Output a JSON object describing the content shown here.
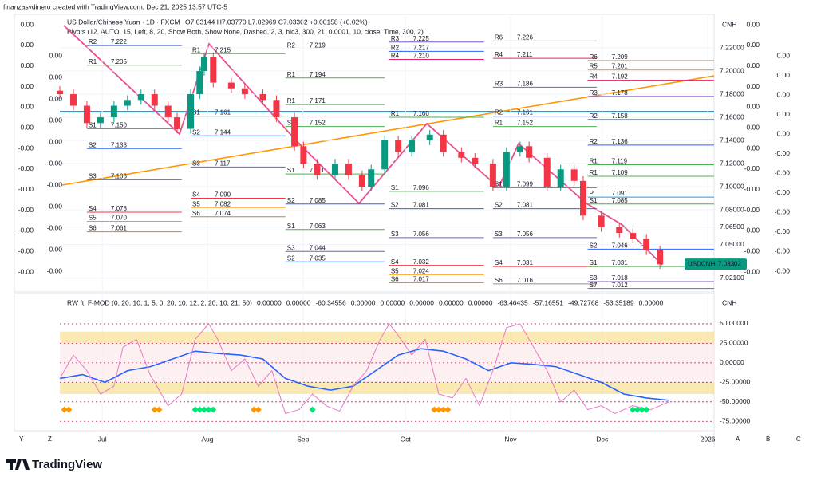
{
  "header": {
    "credit": "finanzasydinero created with TradingView.com, Dec 21, 2025 13:57 UTC-5",
    "symbol": "US Dollar/Chinese Yuan · 1D · FXCM",
    "ohlc": "O7.03144 H7.03770 L7.02969 C7.03302 +0.00158 (+0.02%)",
    "pivots_legend": "Pivots (12, AUTO, 15, Left, 8, 20, Show Both, Show None, Dashed, 2, 3, hlc3, 300, 21, 0.0001, 10, close, Time, 300, 2)",
    "currency": "CNH",
    "osc_currency": "CNH",
    "side_scales": [
      [
        "0.00",
        "0.00",
        "0.00",
        "0.00",
        "0.00",
        "0.00",
        "-0.00",
        "-0.00",
        "-0.00",
        "-0.00",
        "-0.00",
        "-0.00",
        "-0.00"
      ],
      [
        "0.00",
        "0.00",
        "0.00",
        "0.00",
        "0.00",
        "-0.00",
        "-0.00",
        "-0.00",
        "-0.00",
        "-0.00",
        "-0.00"
      ],
      [
        "0.00",
        "0.00",
        "0.00",
        "0.00",
        "0.00",
        "0.00",
        "0.00",
        "-0.00",
        "-0.00",
        "-0.00",
        "-0.00",
        "-0.00",
        "-0.00"
      ],
      [
        "0.00",
        "0.00",
        "0.00",
        "0.00",
        "0.00",
        "-0.00",
        "-0.00",
        "-0.00",
        "-0.00",
        "-0.00",
        "-0.00",
        "-0.00"
      ]
    ]
  },
  "footer": {
    "brand": "TradingView",
    "nav_left": [
      "Y",
      "Z"
    ],
    "nav_right": [
      "A",
      "B",
      "C"
    ]
  },
  "chart_data": [
    {
      "type": "candlestick",
      "symbol_tag": "USDCNH",
      "last_price": 7.03302,
      "xlim": [
        0,
        145
      ],
      "xticks": [
        {
          "value": 9.4,
          "label": "Jul"
        },
        {
          "value": 32.7,
          "label": "Aug"
        },
        {
          "value": 53.9,
          "label": "Sep"
        },
        {
          "value": 76.6,
          "label": "Oct"
        },
        {
          "value": 99.9,
          "label": "Nov"
        },
        {
          "value": 120.2,
          "label": "Dec"
        },
        {
          "value": 143.6,
          "label": "2026"
        }
      ],
      "ylim": [
        7.0097,
        7.2476
      ],
      "yticks": [
        {
          "value": 7.22,
          "label": "7.22000"
        },
        {
          "value": 7.2,
          "label": "7.20000"
        },
        {
          "value": 7.18,
          "label": "7.18000"
        },
        {
          "value": 7.16,
          "label": "7.16000"
        },
        {
          "value": 7.14,
          "label": "7.14000"
        },
        {
          "value": 7.12,
          "label": "7.12000"
        },
        {
          "value": 7.1,
          "label": "7.10000"
        },
        {
          "value": 7.08,
          "label": "7.08000"
        },
        {
          "value": 7.065,
          "label": "7.06500"
        },
        {
          "value": 7.05,
          "label": "7.05000"
        },
        {
          "value": 7.021,
          "label": "7.02100"
        }
      ],
      "up_color": "#089981",
      "down_color": "#f23645",
      "x": [
        0,
        3,
        6,
        9,
        12,
        15,
        18,
        21,
        24,
        26,
        29,
        31,
        32,
        34,
        38,
        41,
        45,
        48,
        52,
        54,
        57,
        61,
        64,
        67,
        69,
        72,
        75,
        78,
        82,
        85,
        89,
        92,
        96,
        99,
        102,
        104,
        108,
        111,
        114,
        116,
        120,
        124,
        127,
        130,
        133
      ],
      "open": [
        7.183,
        7.18,
        7.17,
        7.155,
        7.16,
        7.17,
        7.175,
        7.18,
        7.17,
        7.16,
        7.15,
        7.18,
        7.2,
        7.212,
        7.19,
        7.185,
        7.18,
        7.175,
        7.16,
        7.135,
        7.12,
        7.11,
        7.12,
        7.11,
        7.1,
        7.115,
        7.14,
        7.13,
        7.14,
        7.145,
        7.13,
        7.125,
        7.12,
        7.1,
        7.13,
        7.135,
        7.125,
        7.1,
        7.115,
        7.105,
        7.075,
        7.065,
        7.06,
        7.055,
        7.045
      ],
      "high": [
        7.187,
        7.184,
        7.174,
        7.164,
        7.174,
        7.179,
        7.184,
        7.184,
        7.174,
        7.164,
        7.184,
        7.204,
        7.216,
        7.216,
        7.194,
        7.189,
        7.184,
        7.179,
        7.164,
        7.139,
        7.124,
        7.124,
        7.124,
        7.114,
        7.119,
        7.144,
        7.144,
        7.144,
        7.149,
        7.149,
        7.134,
        7.129,
        7.124,
        7.134,
        7.139,
        7.139,
        7.129,
        7.119,
        7.119,
        7.109,
        7.079,
        7.069,
        7.064,
        7.059,
        7.049
      ],
      "low": [
        7.176,
        7.166,
        7.151,
        7.151,
        7.156,
        7.166,
        7.171,
        7.166,
        7.156,
        7.146,
        7.146,
        7.176,
        7.196,
        7.186,
        7.181,
        7.176,
        7.171,
        7.156,
        7.131,
        7.116,
        7.106,
        7.106,
        7.106,
        7.096,
        7.096,
        7.111,
        7.126,
        7.126,
        7.136,
        7.126,
        7.121,
        7.116,
        7.096,
        7.096,
        7.126,
        7.121,
        7.096,
        7.096,
        7.101,
        7.071,
        7.061,
        7.056,
        7.051,
        7.041,
        7.029
      ],
      "close": [
        7.18,
        7.17,
        7.155,
        7.16,
        7.17,
        7.175,
        7.18,
        7.17,
        7.16,
        7.15,
        7.18,
        7.2,
        7.212,
        7.19,
        7.185,
        7.18,
        7.175,
        7.16,
        7.135,
        7.12,
        7.11,
        7.12,
        7.11,
        7.1,
        7.115,
        7.14,
        7.13,
        7.14,
        7.145,
        7.13,
        7.125,
        7.12,
        7.1,
        7.13,
        7.135,
        7.125,
        7.1,
        7.115,
        7.105,
        7.075,
        7.065,
        7.06,
        7.055,
        7.045,
        7.033
      ],
      "level_colors": {
        "P": "#2196f3",
        "R1": "#4caf50",
        "R2": "#2962ff",
        "R3": "#7e57c2",
        "R4": "#e91e63",
        "R5": "#ff9800",
        "R6": "#a1887f",
        "S1": "#4caf50",
        "S2": "#2962ff",
        "S3": "#7e57c2",
        "S4": "#f23645",
        "S5": "#ff9800",
        "S6": "#a1887f",
        "S7": "#7e57c2"
      },
      "pivots": [
        {
          "x": [
            6,
            27
          ],
          "levels": [
            {
              "name": "R2",
              "value": 7.222
            },
            {
              "name": "R1",
              "value": 7.205
            },
            {
              "name": "S1",
              "value": 7.15,
              "label": "7.150"
            },
            {
              "name": "S2",
              "value": 7.133
            },
            {
              "name": "S3",
              "value": 7.106
            },
            {
              "name": "S4",
              "value": 7.078
            },
            {
              "name": "S5",
              "value": 7.07,
              "label": "7.070"
            },
            {
              "name": "S6",
              "value": 7.061
            }
          ]
        },
        {
          "x": [
            29,
            50
          ],
          "levels": [
            {
              "name": "R1",
              "value": 7.215
            },
            {
              "name": "S1",
              "value": 7.161
            },
            {
              "name": "S2",
              "value": 7.144
            },
            {
              "name": "S3",
              "value": 7.117
            },
            {
              "name": "S4",
              "value": 7.09,
              "label": "7.090"
            },
            {
              "name": "S5",
              "value": 7.082
            },
            {
              "name": "S6",
              "value": 7.074
            }
          ]
        },
        {
          "x": [
            50,
            72
          ],
          "levels": [
            {
              "name": "R2",
              "value": 7.219
            },
            {
              "name": "R1",
              "value": 7.194
            },
            {
              "name": "R1",
              "value": 7.171
            },
            {
              "name": "S1",
              "value": 7.152
            },
            {
              "name": "S1",
              "value": 7.111
            },
            {
              "name": "S2",
              "value": 7.085
            },
            {
              "name": "S1",
              "value": 7.063
            },
            {
              "name": "S3",
              "value": 7.044
            },
            {
              "name": "S2",
              "value": 7.035
            }
          ]
        },
        {
          "x": [
            73,
            94
          ],
          "levels": [
            {
              "name": "R3",
              "value": 7.225
            },
            {
              "name": "R2",
              "value": 7.217
            },
            {
              "name": "R4",
              "value": 7.21,
              "label": "7.210"
            },
            {
              "name": "R1",
              "value": 7.16,
              "label": "7.160"
            },
            {
              "name": "S1",
              "value": 7.096
            },
            {
              "name": "S2",
              "value": 7.081
            },
            {
              "name": "S3",
              "value": 7.056
            },
            {
              "name": "S4",
              "value": 7.032
            },
            {
              "name": "S5",
              "value": 7.024
            },
            {
              "name": "S6",
              "value": 7.017
            }
          ]
        },
        {
          "x": [
            96,
            119
          ],
          "levels": [
            {
              "name": "R6",
              "value": 7.226
            },
            {
              "name": "R4",
              "value": 7.211
            },
            {
              "name": "R3",
              "value": 7.186
            },
            {
              "name": "R2",
              "value": 7.161
            },
            {
              "name": "R1",
              "value": 7.152
            },
            {
              "name": "S1",
              "value": 7.099
            },
            {
              "name": "S2",
              "value": 7.081
            },
            {
              "name": "S3",
              "value": 7.056
            },
            {
              "name": "S4",
              "value": 7.031
            },
            {
              "name": "S6",
              "value": 7.016
            }
          ]
        },
        {
          "x": [
            117,
            145
          ],
          "levels": [
            {
              "name": "R6",
              "value": 7.209
            },
            {
              "name": "R5",
              "value": 7.201
            },
            {
              "name": "R4",
              "value": 7.192
            },
            {
              "name": "R3",
              "value": 7.178
            },
            {
              "name": "R2",
              "value": 7.158
            },
            {
              "name": "R2",
              "value": 7.136
            },
            {
              "name": "R1",
              "value": 7.119
            },
            {
              "name": "R1",
              "value": 7.109
            },
            {
              "name": "P",
              "value": 7.091
            },
            {
              "name": "S1",
              "value": 7.085
            },
            {
              "name": "S2",
              "value": 7.046
            },
            {
              "name": "S1",
              "value": 7.031
            },
            {
              "name": "S3",
              "value": 7.018
            },
            {
              "name": "S7",
              "value": 7.012
            }
          ]
        }
      ]
    },
    {
      "type": "line",
      "title": "RW ft. F-MOD (0, 20, 10, 1, 5, 0, 20, 10, 12, 2, 20, 10, 21, 50)",
      "readouts": [
        {
          "text": "0.00000",
          "color": "#e6b800"
        },
        {
          "text": "0.00000",
          "color": "#4caf50"
        },
        {
          "text": "-60.34556",
          "color": "#9c27b0"
        },
        {
          "text": "0.00000",
          "color": "#9c27b0"
        },
        {
          "text": "0.00000",
          "color": "#e040fb"
        },
        {
          "text": "0.00000",
          "color": "#e91e63"
        },
        {
          "text": "0.00000",
          "color": "#f23645"
        },
        {
          "text": "0.00000",
          "color": "#2962ff"
        },
        {
          "text": "-63.46435",
          "color": "#2962ff"
        },
        {
          "text": "-57.16551",
          "color": "#f23645"
        },
        {
          "text": "-49.72768",
          "color": "#9c27b0"
        },
        {
          "text": "-53.35189",
          "color": "#ff9800"
        },
        {
          "text": "0.00000",
          "color": "#f23645"
        }
      ],
      "xlim": [
        0,
        145
      ],
      "ylim": [
        -87,
        86.7
      ],
      "yticks": [
        {
          "value": 50,
          "label": "50.00000"
        },
        {
          "value": 25,
          "label": "25.00000"
        },
        {
          "value": 0,
          "label": "0.00000"
        },
        {
          "value": -25,
          "label": "-25.00000"
        },
        {
          "value": -50,
          "label": "-50.00000"
        },
        {
          "value": -75,
          "label": "-75.00000"
        }
      ],
      "bands": [
        {
          "from": 25,
          "to": 40,
          "color": "#f7d774"
        },
        {
          "from": 0,
          "to": 25,
          "color": "#fbe3e3"
        },
        {
          "from": -25,
          "to": 0,
          "color": "#fbe3e3"
        },
        {
          "from": -40,
          "to": -25,
          "color": "#f7d774"
        }
      ],
      "series": [
        {
          "color": "#2962ff",
          "width": 1.6,
          "x": [
            0,
            5,
            10,
            15,
            20,
            25,
            30,
            35,
            40,
            45,
            50,
            55,
            60,
            65,
            70,
            75,
            80,
            85,
            90,
            95,
            100,
            105,
            110,
            115,
            120,
            125,
            130,
            135
          ],
          "values": [
            -20,
            -15,
            -25,
            -10,
            -5,
            5,
            15,
            12,
            10,
            5,
            -20,
            -30,
            -35,
            -30,
            -10,
            10,
            18,
            15,
            5,
            -10,
            0,
            -2,
            -5,
            -15,
            -25,
            -40,
            -45,
            -48
          ]
        },
        {
          "color": "#e57bc8",
          "width": 1,
          "x": [
            0,
            3,
            6,
            9,
            12,
            14,
            17,
            20,
            24,
            27,
            30,
            33,
            35,
            38,
            41,
            44,
            47,
            50,
            53,
            56,
            59,
            62,
            65,
            68,
            71,
            73,
            75,
            78,
            81,
            84,
            87,
            90,
            93,
            96,
            99,
            102,
            105,
            108,
            111,
            114,
            117,
            120,
            123,
            127,
            131,
            135
          ],
          "values": [
            -20,
            10,
            -10,
            -40,
            -30,
            20,
            30,
            -15,
            -55,
            -40,
            30,
            50,
            30,
            -10,
            5,
            -30,
            -10,
            -65,
            -60,
            -40,
            -55,
            -62,
            -30,
            -10,
            30,
            50,
            35,
            10,
            30,
            -40,
            -45,
            -20,
            -55,
            -10,
            45,
            50,
            20,
            -10,
            -50,
            -35,
            -60,
            -55,
            -65,
            -55,
            -60,
            -50
          ]
        }
      ],
      "markers": [
        {
          "color": "#ff9800",
          "x": [
            1,
            2,
            21,
            22,
            43,
            44,
            83,
            84,
            85,
            86
          ],
          "values": [
            -60,
            -60,
            -60,
            -60,
            -60,
            -60,
            -60,
            -60,
            -60,
            -60
          ]
        },
        {
          "color": "#00e676",
          "x": [
            30,
            31,
            32,
            33,
            34,
            56,
            127,
            128,
            129,
            130
          ],
          "values": [
            -60,
            -60,
            -60,
            -60,
            -60,
            -60,
            -60,
            -60,
            -60,
            -60
          ]
        }
      ]
    }
  ]
}
